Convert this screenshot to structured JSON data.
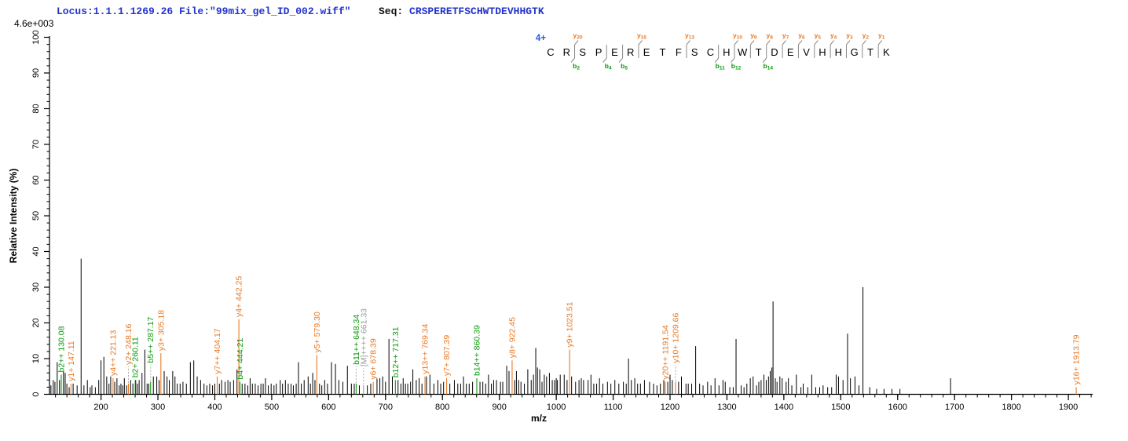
{
  "header": {
    "locus_file": "Locus:1.1.1.1269.26 File:\"99mix_gel_ID_002.wiff\"",
    "seq_label": "Seq: ",
    "sequence": "CRSPERETFSCHWTDEVHHGTK",
    "intensity_scale": "4.6e+003"
  },
  "fragment_map": {
    "charge_label": "4+",
    "sequence": "CRSPERETFSCHWTDEVHHGTK",
    "y_ions": [
      20,
      16,
      13,
      10,
      9,
      8,
      7,
      6,
      5,
      4,
      3,
      2,
      1
    ],
    "b_ions": [
      2,
      4,
      5,
      11,
      12,
      14
    ]
  },
  "colors": {
    "header_blue": "#2233cc",
    "charge_blue": "#2a55e0",
    "y_ion": "#e87a26",
    "b_ion": "#0a9a0a",
    "precursor": "#999999",
    "peak": "#000000",
    "axis": "#000000",
    "divider": "#8a8a8a"
  },
  "chart_data": {
    "type": "bar",
    "subtype": "ms2-centroid-mass-spectrum",
    "title": "Locus:1.1.1.1269.26 File:\"99mix_gel_ID_002.wiff\"  Seq: CRSPERETFSCHWTDEVHHGTK",
    "xlabel": "m/z",
    "ylabel": "Relative  Intensity  (%)",
    "intensity_scale_label": "4.6e+003",
    "xlim": [
      109,
      1941
    ],
    "ylim": [
      0,
      100
    ],
    "x_major_ticks": [
      200,
      300,
      400,
      500,
      600,
      700,
      800,
      900,
      1000,
      1100,
      1200,
      1300,
      1400,
      1500,
      1600,
      1700,
      1800,
      1900
    ],
    "x_minor_tick_step": 20,
    "y_major_ticks": [
      0,
      10,
      20,
      30,
      40,
      50,
      60,
      70,
      80,
      90,
      100
    ],
    "y_minor_tick_step": 2,
    "grid": false,
    "legend": false,
    "annotated_peaks": [
      {
        "label": "b2++ 130.08",
        "mz": 130.08,
        "h": 5.5,
        "type": "b",
        "leader": false
      },
      {
        "label": "y1+ 147.11",
        "mz": 147.11,
        "h": 3,
        "type": "y",
        "leader": false
      },
      {
        "label": "y4++ 221.13",
        "mz": 221.13,
        "h": 4.5,
        "type": "y",
        "leader": false
      },
      {
        "label": "y2+ 248.16",
        "mz": 248.16,
        "h": 3,
        "type": "y",
        "leader": true
      },
      {
        "label": "b2+ 260.11",
        "mz": 260.11,
        "h": 4,
        "type": "b",
        "leader": false
      },
      {
        "label": "b5++ 287.17",
        "mz": 287.17,
        "h": 3.5,
        "type": "b",
        "leader": true
      },
      {
        "label": "y3+ 305.18",
        "mz": 305.18,
        "h": 11.5,
        "type": "y",
        "leader": false
      },
      {
        "label": "y7++ 404.17",
        "mz": 404.17,
        "h": 5,
        "type": "y",
        "leader": false
      },
      {
        "label": "y4+ 442.25",
        "mz": 442.25,
        "h": 21,
        "type": "y",
        "leader": false
      },
      {
        "label": "b4+ 444.21",
        "mz": 444.21,
        "h": 3.5,
        "type": "b",
        "leader": false
      },
      {
        "label": "y5+ 579.30",
        "mz": 579.3,
        "h": 11,
        "type": "y",
        "leader": false
      },
      {
        "label": "b11++ 648.34",
        "mz": 648.34,
        "h": 3,
        "type": "b",
        "leader": true
      },
      {
        "label": "[M]++++ 661.33",
        "mz": 661.33,
        "h": 2.5,
        "type": "M",
        "leader": true
      },
      {
        "label": "y6+ 678.39",
        "mz": 678.39,
        "h": 3.5,
        "type": "y",
        "leader": false
      },
      {
        "label": "b12++ 717.31",
        "mz": 717.31,
        "h": 4,
        "type": "b",
        "leader": false
      },
      {
        "label": "y13++ 769.34",
        "mz": 769.34,
        "h": 5,
        "type": "y",
        "leader": false
      },
      {
        "label": "y7+ 807.39",
        "mz": 807.39,
        "h": 4.5,
        "type": "y",
        "leader": false
      },
      {
        "label": "b14++ 860.39",
        "mz": 860.39,
        "h": 4.5,
        "type": "b",
        "leader": false
      },
      {
        "label": "y8+ 922.45",
        "mz": 922.45,
        "h": 9.5,
        "type": "y",
        "leader": false
      },
      {
        "label": "y9+ 1023.51",
        "mz": 1023.51,
        "h": 12.5,
        "type": "y",
        "leader": false
      },
      {
        "label": "y20++ 1191.54",
        "mz": 1191.54,
        "h": 3.5,
        "type": "y",
        "leader": false
      },
      {
        "label": "y10+ 1209.66",
        "mz": 1209.66,
        "h": 3.5,
        "type": "y",
        "leader": true
      },
      {
        "label": "y16+ 1913.79",
        "mz": 1913.79,
        "h": 2,
        "type": "y",
        "leader": false
      }
    ],
    "peaks": [
      [
        112,
        2.5
      ],
      [
        116,
        4
      ],
      [
        119,
        3.5
      ],
      [
        123,
        9
      ],
      [
        127,
        4
      ],
      [
        134,
        6.5
      ],
      [
        137,
        6
      ],
      [
        140,
        3
      ],
      [
        144,
        2
      ],
      [
        151,
        3
      ],
      [
        158,
        2.5
      ],
      [
        165,
        38
      ],
      [
        170,
        2.5
      ],
      [
        176,
        4
      ],
      [
        181,
        2
      ],
      [
        184,
        2.5
      ],
      [
        190,
        2
      ],
      [
        196,
        4
      ],
      [
        200,
        9.5
      ],
      [
        205,
        10.5
      ],
      [
        210,
        5
      ],
      [
        214,
        3
      ],
      [
        217,
        5
      ],
      [
        224,
        3.5
      ],
      [
        228,
        4.5
      ],
      [
        232,
        2.5
      ],
      [
        235,
        3
      ],
      [
        238,
        2.5
      ],
      [
        241,
        4.5
      ],
      [
        245,
        2.5
      ],
      [
        252,
        4
      ],
      [
        256,
        3
      ],
      [
        261,
        4
      ],
      [
        264,
        3
      ],
      [
        267,
        4
      ],
      [
        272,
        6
      ],
      [
        277,
        12.5
      ],
      [
        281,
        3
      ],
      [
        284,
        3
      ],
      [
        292,
        5
      ],
      [
        298,
        5
      ],
      [
        302,
        4
      ],
      [
        311,
        6.5
      ],
      [
        316,
        5
      ],
      [
        320,
        4
      ],
      [
        326,
        6.5
      ],
      [
        330,
        5
      ],
      [
        334,
        3
      ],
      [
        339,
        3
      ],
      [
        344,
        3.5
      ],
      [
        350,
        3
      ],
      [
        357,
        9
      ],
      [
        363,
        9.5
      ],
      [
        369,
        5
      ],
      [
        375,
        4
      ],
      [
        381,
        3
      ],
      [
        386,
        2.5
      ],
      [
        391,
        3
      ],
      [
        396,
        2.5
      ],
      [
        400,
        3
      ],
      [
        408,
        3
      ],
      [
        412,
        4
      ],
      [
        418,
        3.5
      ],
      [
        423,
        4
      ],
      [
        427,
        3.5
      ],
      [
        433,
        4
      ],
      [
        439,
        7
      ],
      [
        448,
        3
      ],
      [
        453,
        3
      ],
      [
        458,
        2.5
      ],
      [
        462,
        4.5
      ],
      [
        466,
        3
      ],
      [
        471,
        3
      ],
      [
        476,
        2.5
      ],
      [
        481,
        3
      ],
      [
        485,
        3
      ],
      [
        489,
        4.5
      ],
      [
        494,
        2.5
      ],
      [
        499,
        3
      ],
      [
        504,
        2.5
      ],
      [
        508,
        3
      ],
      [
        515,
        4
      ],
      [
        519,
        3
      ],
      [
        524,
        4
      ],
      [
        529,
        3
      ],
      [
        534,
        3
      ],
      [
        538,
        2.5
      ],
      [
        543,
        3
      ],
      [
        547,
        9
      ],
      [
        552,
        3
      ],
      [
        557,
        4
      ],
      [
        564,
        5
      ],
      [
        568,
        3
      ],
      [
        572,
        6
      ],
      [
        576,
        4
      ],
      [
        584,
        3
      ],
      [
        588,
        2.5
      ],
      [
        593,
        4
      ],
      [
        598,
        3
      ],
      [
        605,
        9
      ],
      [
        612,
        8.5
      ],
      [
        618,
        4
      ],
      [
        625,
        3.5
      ],
      [
        633,
        8
      ],
      [
        640,
        3
      ],
      [
        645,
        3
      ],
      [
        654,
        2.5
      ],
      [
        668,
        2.5
      ],
      [
        674,
        3
      ],
      [
        685,
        4.5
      ],
      [
        690,
        4.5
      ],
      [
        695,
        5
      ],
      [
        700,
        3.5
      ],
      [
        706,
        15.5
      ],
      [
        712,
        5
      ],
      [
        722,
        4
      ],
      [
        727,
        3
      ],
      [
        731,
        4.5
      ],
      [
        735,
        3
      ],
      [
        739,
        3
      ],
      [
        744,
        3.5
      ],
      [
        748,
        7
      ],
      [
        754,
        4
      ],
      [
        759,
        4.5
      ],
      [
        764,
        3
      ],
      [
        772,
        5
      ],
      [
        778,
        5.5
      ],
      [
        785,
        3
      ],
      [
        792,
        4
      ],
      [
        797,
        3
      ],
      [
        802,
        3.5
      ],
      [
        813,
        3
      ],
      [
        821,
        4
      ],
      [
        827,
        3
      ],
      [
        832,
        3
      ],
      [
        837,
        5
      ],
      [
        842,
        3
      ],
      [
        847,
        3
      ],
      [
        853,
        3.5
      ],
      [
        866,
        3.5
      ],
      [
        871,
        3.5
      ],
      [
        876,
        3
      ],
      [
        881,
        5.5
      ],
      [
        886,
        3
      ],
      [
        890,
        4
      ],
      [
        895,
        4
      ],
      [
        902,
        3.5
      ],
      [
        906,
        3.5
      ],
      [
        913,
        8
      ],
      [
        917,
        6.5
      ],
      [
        927,
        4
      ],
      [
        930,
        6.5
      ],
      [
        934,
        4
      ],
      [
        938,
        3.5
      ],
      [
        944,
        3
      ],
      [
        950,
        7
      ],
      [
        956,
        4
      ],
      [
        960,
        5.5
      ],
      [
        964,
        13
      ],
      [
        967,
        7.5
      ],
      [
        971,
        7
      ],
      [
        975,
        3.5
      ],
      [
        979,
        5.5
      ],
      [
        983,
        5
      ],
      [
        988,
        6
      ],
      [
        993,
        4
      ],
      [
        997,
        4
      ],
      [
        1000,
        4.5
      ],
      [
        1002,
        4
      ],
      [
        1007,
        5.5
      ],
      [
        1014,
        5.5
      ],
      [
        1019,
        4
      ],
      [
        1027,
        5
      ],
      [
        1034,
        3.5
      ],
      [
        1040,
        4
      ],
      [
        1044,
        4.5
      ],
      [
        1048,
        4
      ],
      [
        1056,
        4
      ],
      [
        1061,
        5.5
      ],
      [
        1066,
        3
      ],
      [
        1071,
        3
      ],
      [
        1076,
        4.5
      ],
      [
        1082,
        3
      ],
      [
        1090,
        3.5
      ],
      [
        1096,
        3
      ],
      [
        1103,
        4
      ],
      [
        1110,
        3
      ],
      [
        1118,
        3.5
      ],
      [
        1123,
        3
      ],
      [
        1127,
        10
      ],
      [
        1132,
        4
      ],
      [
        1138,
        4.5
      ],
      [
        1143,
        3
      ],
      [
        1148,
        3
      ],
      [
        1155,
        4
      ],
      [
        1164,
        3.5
      ],
      [
        1171,
        3
      ],
      [
        1177,
        2.5
      ],
      [
        1183,
        3
      ],
      [
        1189,
        4
      ],
      [
        1196,
        3.5
      ],
      [
        1200,
        5.5
      ],
      [
        1204,
        4
      ],
      [
        1215,
        3.5
      ],
      [
        1220,
        5
      ],
      [
        1228,
        3
      ],
      [
        1232,
        3
      ],
      [
        1238,
        3
      ],
      [
        1245,
        13.5
      ],
      [
        1252,
        3
      ],
      [
        1258,
        2.5
      ],
      [
        1266,
        3.5
      ],
      [
        1272,
        2.5
      ],
      [
        1279,
        4.5
      ],
      [
        1286,
        2.5
      ],
      [
        1293,
        4
      ],
      [
        1297,
        3.5
      ],
      [
        1305,
        2
      ],
      [
        1311,
        2
      ],
      [
        1316,
        15.5
      ],
      [
        1325,
        2.5
      ],
      [
        1330,
        2
      ],
      [
        1335,
        3
      ],
      [
        1341,
        4.5
      ],
      [
        1346,
        5
      ],
      [
        1352,
        2.5
      ],
      [
        1356,
        3.5
      ],
      [
        1360,
        4
      ],
      [
        1365,
        5.5
      ],
      [
        1369,
        4
      ],
      [
        1373,
        5
      ],
      [
        1376,
        6.5
      ],
      [
        1379,
        7.5
      ],
      [
        1381,
        26
      ],
      [
        1385,
        4.5
      ],
      [
        1388,
        3.5
      ],
      [
        1393,
        5
      ],
      [
        1397,
        4.5
      ],
      [
        1404,
        3.5
      ],
      [
        1408,
        4.5
      ],
      [
        1414,
        2.5
      ],
      [
        1422,
        5.5
      ],
      [
        1430,
        2
      ],
      [
        1434,
        3
      ],
      [
        1442,
        2
      ],
      [
        1449,
        5.5
      ],
      [
        1456,
        2
      ],
      [
        1463,
        2
      ],
      [
        1469,
        2.5
      ],
      [
        1477,
        2
      ],
      [
        1484,
        2
      ],
      [
        1492,
        5.5
      ],
      [
        1496,
        5
      ],
      [
        1504,
        4
      ],
      [
        1512,
        17
      ],
      [
        1517,
        4.5
      ],
      [
        1525,
        5
      ],
      [
        1532,
        2.5
      ],
      [
        1539,
        30
      ],
      [
        1551,
        2
      ],
      [
        1563,
        1.5
      ],
      [
        1576,
        1.5
      ],
      [
        1590,
        1.5
      ],
      [
        1604,
        1.5
      ],
      [
        1693,
        4.5
      ]
    ]
  }
}
